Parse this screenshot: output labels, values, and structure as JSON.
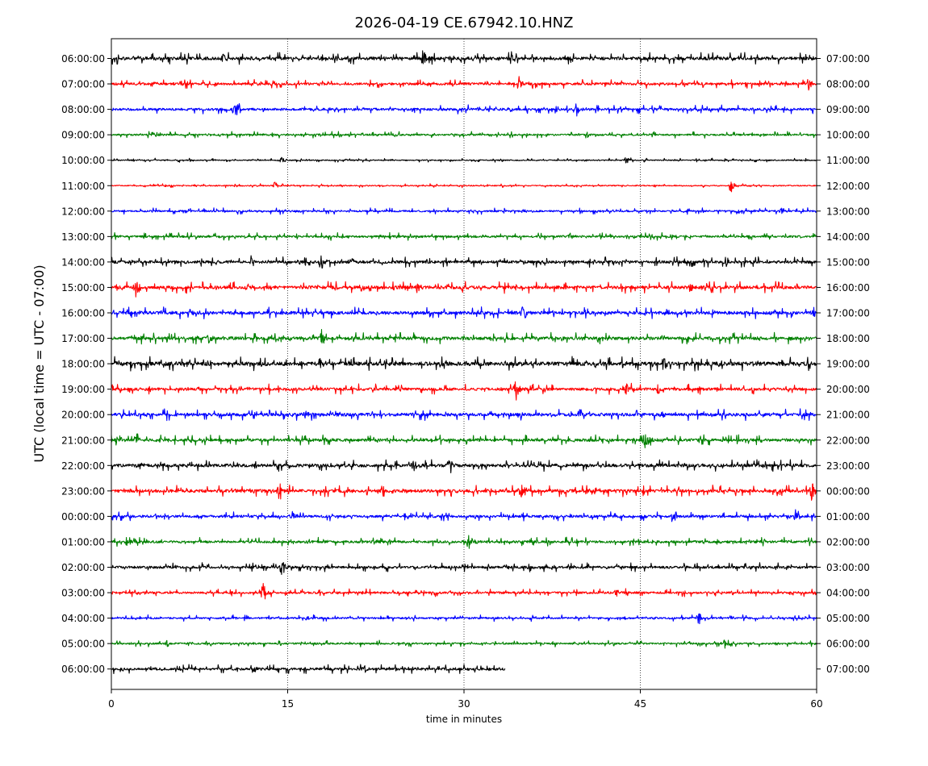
{
  "chart_data": {
    "type": "line",
    "title": "2026-04-19 CE.67942.10.HNZ",
    "xlabel": "time in minutes",
    "ylabel": "UTC (local time = UTC - 07:00)",
    "xlim": [
      0,
      60
    ],
    "x_ticks": [
      "0",
      "15",
      "30",
      "45",
      "60"
    ],
    "x_grid_minutes": [
      15,
      30,
      45
    ],
    "grid": "vertical dotted",
    "trace_colors": [
      "#000000",
      "#ff0000",
      "#0000ff",
      "#008000"
    ],
    "left_labels": [
      "06:00:00",
      "07:00:00",
      "08:00:00",
      "09:00:00",
      "10:00:00",
      "11:00:00",
      "12:00:00",
      "13:00:00",
      "14:00:00",
      "15:00:00",
      "16:00:00",
      "17:00:00",
      "18:00:00",
      "19:00:00",
      "20:00:00",
      "21:00:00",
      "22:00:00",
      "23:00:00",
      "00:00:00",
      "01:00:00",
      "02:00:00",
      "03:00:00",
      "04:00:00",
      "05:00:00",
      "06:00:00"
    ],
    "right_labels": [
      "07:00:00",
      "08:00:00",
      "09:00:00",
      "10:00:00",
      "11:00:00",
      "12:00:00",
      "13:00:00",
      "14:00:00",
      "15:00:00",
      "16:00:00",
      "17:00:00",
      "18:00:00",
      "19:00:00",
      "20:00:00",
      "21:00:00",
      "22:00:00",
      "23:00:00",
      "00:00:00",
      "01:00:00",
      "02:00:00",
      "03:00:00",
      "04:00:00",
      "05:00:00",
      "06:00:00",
      "07:00:00"
    ],
    "row_end_minutes": [
      60,
      60,
      60,
      60,
      60,
      60,
      60,
      60,
      60,
      60,
      60,
      60,
      60,
      60,
      60,
      60,
      60,
      60,
      60,
      60,
      60,
      60,
      60,
      60,
      33.5
    ],
    "row_noise_level": [
      0.45,
      0.35,
      0.35,
      0.25,
      0.15,
      0.15,
      0.25,
      0.3,
      0.4,
      0.45,
      0.45,
      0.45,
      0.55,
      0.4,
      0.45,
      0.4,
      0.45,
      0.45,
      0.35,
      0.35,
      0.35,
      0.3,
      0.25,
      0.25,
      0.35
    ],
    "events": [
      {
        "row": 0,
        "minute": 26.5,
        "amp": 1.5
      },
      {
        "row": 0,
        "minute": 34.0,
        "amp": 1.1
      },
      {
        "row": 0,
        "minute": 9.5,
        "amp": 0.8
      },
      {
        "row": 1,
        "minute": 34.7,
        "amp": 1.4
      },
      {
        "row": 1,
        "minute": 59.3,
        "amp": 0.9
      },
      {
        "row": 1,
        "minute": 3.5,
        "amp": 0.7
      },
      {
        "row": 2,
        "minute": 10.6,
        "amp": 1.4
      },
      {
        "row": 2,
        "minute": 39.6,
        "amp": 0.7
      },
      {
        "row": 3,
        "minute": 3.8,
        "amp": 0.5
      },
      {
        "row": 4,
        "minute": 14.5,
        "amp": 0.6
      },
      {
        "row": 4,
        "minute": 43.8,
        "amp": 0.6
      },
      {
        "row": 5,
        "minute": 52.7,
        "amp": 1.3
      },
      {
        "row": 5,
        "minute": 13.9,
        "amp": 0.6
      },
      {
        "row": 6,
        "minute": 53.2,
        "amp": 0.6
      },
      {
        "row": 6,
        "minute": 57.0,
        "amp": 0.6
      },
      {
        "row": 7,
        "minute": 39.0,
        "amp": 0.6
      },
      {
        "row": 7,
        "minute": 30.3,
        "amp": 0.5
      },
      {
        "row": 8,
        "minute": 17.8,
        "amp": 1.7
      },
      {
        "row": 8,
        "minute": 12.0,
        "amp": 1.0
      },
      {
        "row": 8,
        "minute": 52.3,
        "amp": 0.9
      },
      {
        "row": 9,
        "minute": 2.1,
        "amp": 1.5
      },
      {
        "row": 9,
        "minute": 26.0,
        "amp": 0.8
      },
      {
        "row": 9,
        "minute": 49.2,
        "amp": 0.8
      },
      {
        "row": 10,
        "minute": 35.0,
        "amp": 1.6
      },
      {
        "row": 10,
        "minute": 59.8,
        "amp": 1.0
      },
      {
        "row": 10,
        "minute": 6.5,
        "amp": 0.8
      },
      {
        "row": 11,
        "minute": 17.9,
        "amp": 1.6
      },
      {
        "row": 11,
        "minute": 8.3,
        "amp": 0.9
      },
      {
        "row": 12,
        "minute": 47.0,
        "amp": 1.6
      },
      {
        "row": 12,
        "minute": 0.3,
        "amp": 1.1
      },
      {
        "row": 12,
        "minute": 17.8,
        "amp": 0.9
      },
      {
        "row": 13,
        "minute": 34.4,
        "amp": 1.9
      },
      {
        "row": 13,
        "minute": 46.5,
        "amp": 1.0
      },
      {
        "row": 13,
        "minute": 43.8,
        "amp": 0.9
      },
      {
        "row": 14,
        "minute": 16.4,
        "amp": 1.0
      },
      {
        "row": 14,
        "minute": 46.8,
        "amp": 0.8
      },
      {
        "row": 15,
        "minute": 45.4,
        "amp": 1.5
      },
      {
        "row": 15,
        "minute": 0.5,
        "amp": 1.2
      },
      {
        "row": 15,
        "minute": 2.1,
        "amp": 1.0
      },
      {
        "row": 16,
        "minute": 28.7,
        "amp": 1.2
      },
      {
        "row": 16,
        "minute": 25.7,
        "amp": 1.0
      },
      {
        "row": 17,
        "minute": 14.3,
        "amp": 2.0
      },
      {
        "row": 17,
        "minute": 34.8,
        "amp": 2.0
      },
      {
        "row": 17,
        "minute": 59.6,
        "amp": 1.7
      },
      {
        "row": 18,
        "minute": 47.8,
        "amp": 1.7
      },
      {
        "row": 18,
        "minute": 15.4,
        "amp": 1.0
      },
      {
        "row": 18,
        "minute": 58.2,
        "amp": 0.9
      },
      {
        "row": 19,
        "minute": 30.4,
        "amp": 1.5
      },
      {
        "row": 19,
        "minute": 1.3,
        "amp": 0.8
      },
      {
        "row": 20,
        "minute": 14.5,
        "amp": 1.5
      },
      {
        "row": 20,
        "minute": 35.6,
        "amp": 0.9
      },
      {
        "row": 21,
        "minute": 12.9,
        "amp": 1.9
      },
      {
        "row": 21,
        "minute": 43.0,
        "amp": 0.8
      },
      {
        "row": 22,
        "minute": 50.0,
        "amp": 1.3
      },
      {
        "row": 22,
        "minute": 16.6,
        "amp": 0.6
      },
      {
        "row": 23,
        "minute": 4.7,
        "amp": 0.8
      },
      {
        "row": 23,
        "minute": 52.2,
        "amp": 0.8
      },
      {
        "row": 24,
        "minute": 21.5,
        "amp": 0.8
      },
      {
        "row": 24,
        "minute": 12.1,
        "amp": 0.8
      }
    ]
  }
}
